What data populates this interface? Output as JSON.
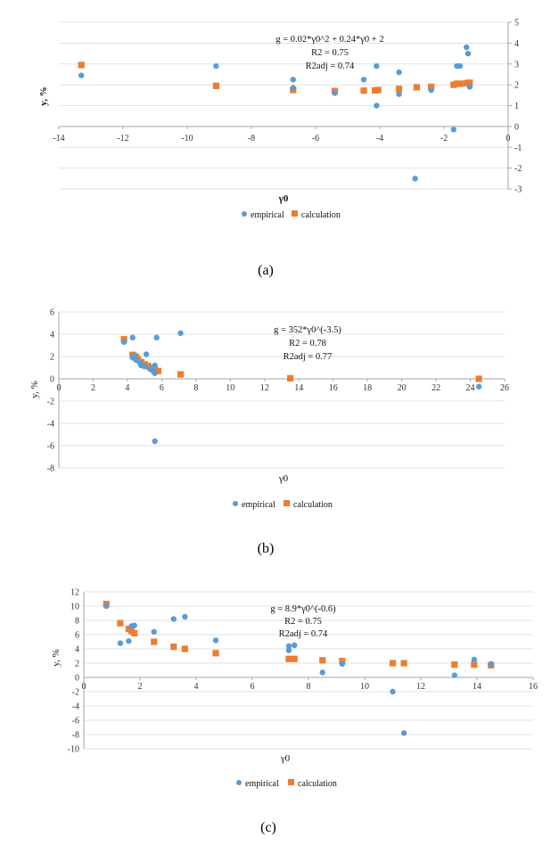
{
  "colors": {
    "empirical": "#5B9BD5",
    "calculation": "#ED7D31",
    "grid": "#D9D9D9",
    "axis": "#A6A6A6"
  },
  "chart_data": [
    {
      "type": "scatter",
      "caption": "(a)",
      "annotation": [
        "g = 0.02*γ0^2 + 0.24*γ0 + 2",
        "R2 = 0.75",
        "R2adj = 0.74"
      ],
      "xlabel": "γ0",
      "ylabel": "y, %",
      "xlim": [
        -14,
        0
      ],
      "ylim": [
        -3,
        5
      ],
      "xticks": [
        -14,
        -12,
        -10,
        -8,
        -6,
        -4,
        -2,
        0
      ],
      "yticks": [
        -3,
        -2,
        -1,
        0,
        1,
        2,
        3,
        4,
        5
      ],
      "xtick_labels": [
        "-14",
        "-12",
        "-10",
        "-8",
        "-6",
        "-4",
        "-2",
        "0"
      ],
      "ytick_labels": [
        "-3",
        "-2",
        "-1",
        "0",
        "1",
        "2",
        "3",
        "4",
        "5"
      ],
      "grid": "horizontal",
      "y_axis_side": "right",
      "x_tick_position": "top",
      "legend": [
        "empirical",
        "calculation"
      ],
      "series": [
        {
          "name": "empirical",
          "marker": "circle",
          "points": [
            [
              -13.3,
              2.45
            ],
            [
              -9.1,
              2.9
            ],
            [
              -6.7,
              2.25
            ],
            [
              -6.7,
              1.85
            ],
            [
              -5.4,
              1.6
            ],
            [
              -4.5,
              2.25
            ],
            [
              -4.1,
              2.9
            ],
            [
              -4.1,
              1.0
            ],
            [
              -3.4,
              2.6
            ],
            [
              -3.4,
              1.55
            ],
            [
              -2.9,
              -2.5
            ],
            [
              -2.4,
              1.75
            ],
            [
              -1.7,
              -0.15
            ],
            [
              -1.6,
              2.9
            ],
            [
              -1.5,
              2.9
            ],
            [
              -1.3,
              3.8
            ],
            [
              -1.25,
              3.5
            ],
            [
              -1.2,
              1.9
            ]
          ]
        },
        {
          "name": "calculation",
          "marker": "square",
          "points": [
            [
              -13.3,
              2.95
            ],
            [
              -9.1,
              1.95
            ],
            [
              -6.7,
              1.75
            ],
            [
              -5.4,
              1.7
            ],
            [
              -4.5,
              1.72
            ],
            [
              -4.15,
              1.73
            ],
            [
              -4.05,
              1.75
            ],
            [
              -3.4,
              1.8
            ],
            [
              -2.85,
              1.88
            ],
            [
              -2.4,
              1.9
            ],
            [
              -1.7,
              2.0
            ],
            [
              -1.6,
              2.05
            ],
            [
              -1.5,
              2.05
            ],
            [
              -1.3,
              2.08
            ],
            [
              -1.2,
              2.1
            ]
          ]
        }
      ]
    },
    {
      "type": "scatter",
      "caption": "(b)",
      "annotation": [
        "g = 352*γ0^(-3.5)",
        "R2 = 0.78",
        "R2adj = 0.77"
      ],
      "xlabel": "γ0",
      "ylabel": "y, %",
      "xlim": [
        0,
        26
      ],
      "ylim": [
        -8,
        6
      ],
      "xticks": [
        0,
        2,
        4,
        6,
        8,
        10,
        12,
        14,
        16,
        18,
        20,
        22,
        24,
        26
      ],
      "yticks": [
        -8,
        -6,
        -4,
        -2,
        0,
        2,
        4,
        6
      ],
      "xtick_labels": [
        "0",
        "2",
        "4",
        "6",
        "8",
        "10",
        "12",
        "14",
        "16",
        "18",
        "20",
        "22",
        "24",
        "26"
      ],
      "ytick_labels": [
        "-8",
        "-6",
        "-4",
        "-2",
        "0",
        "2",
        "4",
        "6"
      ],
      "grid": "horizontal",
      "y_axis_side": "left",
      "x_tick_position": "zero",
      "legend": [
        "empirical",
        "calculation"
      ],
      "series": [
        {
          "name": "empirical",
          "marker": "circle",
          "points": [
            [
              3.8,
              3.3
            ],
            [
              4.3,
              3.7
            ],
            [
              4.3,
              1.9
            ],
            [
              4.4,
              2.1
            ],
            [
              4.5,
              1.7
            ],
            [
              4.7,
              1.5
            ],
            [
              4.8,
              1.2
            ],
            [
              5.0,
              1.1
            ],
            [
              5.1,
              2.2
            ],
            [
              5.3,
              0.9
            ],
            [
              5.5,
              0.7
            ],
            [
              5.6,
              0.5
            ],
            [
              5.6,
              1.2
            ],
            [
              5.6,
              -5.6
            ],
            [
              5.7,
              3.7
            ],
            [
              7.1,
              4.1
            ],
            [
              24.5,
              -0.7
            ]
          ]
        },
        {
          "name": "calculation",
          "marker": "square",
          "points": [
            [
              3.8,
              3.55
            ],
            [
              4.3,
              2.15
            ],
            [
              4.4,
              2.05
            ],
            [
              4.5,
              1.95
            ],
            [
              4.6,
              1.75
            ],
            [
              4.8,
              1.5
            ],
            [
              5.0,
              1.3
            ],
            [
              5.2,
              1.15
            ],
            [
              5.4,
              1.0
            ],
            [
              5.5,
              0.85
            ],
            [
              5.6,
              0.8
            ],
            [
              5.8,
              0.7
            ],
            [
              7.1,
              0.4
            ],
            [
              13.5,
              0.05
            ],
            [
              24.5,
              0.0
            ]
          ]
        }
      ]
    },
    {
      "type": "scatter",
      "caption": "(c)",
      "annotation": [
        "g = 8.9*γ0^(-0.6)",
        "R2 = 0.75",
        "R2adj = 0.74"
      ],
      "xlabel": "γ0",
      "ylabel": "y, %",
      "xlim": [
        0,
        16
      ],
      "ylim": [
        -10,
        12
      ],
      "xticks": [
        0,
        2,
        4,
        6,
        8,
        10,
        12,
        14,
        16
      ],
      "yticks": [
        -10,
        -8,
        -6,
        -4,
        -2,
        0,
        2,
        4,
        6,
        8,
        10,
        12
      ],
      "xtick_labels": [
        "0",
        "2",
        "4",
        "6",
        "8",
        "10",
        "12",
        "14",
        "16"
      ],
      "ytick_labels": [
        "-10",
        "-8",
        "-6",
        "-4",
        "-2",
        "0",
        "2",
        "4",
        "6",
        "8",
        "10",
        "12"
      ],
      "grid": "horizontal",
      "y_axis_side": "left",
      "x_tick_position": "zero",
      "legend": [
        "empirical",
        "calculation"
      ],
      "series": [
        {
          "name": "empirical",
          "marker": "circle",
          "points": [
            [
              0.8,
              10.0
            ],
            [
              1.3,
              4.8
            ],
            [
              1.6,
              5.1
            ],
            [
              1.7,
              7.2
            ],
            [
              1.8,
              7.3
            ],
            [
              2.5,
              6.4
            ],
            [
              3.2,
              8.2
            ],
            [
              3.6,
              8.5
            ],
            [
              4.7,
              5.2
            ],
            [
              7.3,
              4.4
            ],
            [
              7.3,
              3.8
            ],
            [
              7.5,
              4.5
            ],
            [
              8.5,
              0.7
            ],
            [
              9.2,
              1.9
            ],
            [
              11.0,
              -2.0
            ],
            [
              11.4,
              -7.8
            ],
            [
              13.2,
              0.3
            ],
            [
              13.9,
              2.5
            ],
            [
              14.5,
              1.9
            ]
          ]
        },
        {
          "name": "calculation",
          "marker": "square",
          "points": [
            [
              0.8,
              10.3
            ],
            [
              1.3,
              7.6
            ],
            [
              1.6,
              6.8
            ],
            [
              1.7,
              6.5
            ],
            [
              1.8,
              6.2
            ],
            [
              2.5,
              5.0
            ],
            [
              3.2,
              4.3
            ],
            [
              3.6,
              4.0
            ],
            [
              4.7,
              3.4
            ],
            [
              7.3,
              2.6
            ],
            [
              7.5,
              2.6
            ],
            [
              8.5,
              2.4
            ],
            [
              9.2,
              2.3
            ],
            [
              11.0,
              2.0
            ],
            [
              11.4,
              2.0
            ],
            [
              13.2,
              1.8
            ],
            [
              13.9,
              1.8
            ],
            [
              14.5,
              1.7
            ]
          ]
        }
      ]
    }
  ]
}
